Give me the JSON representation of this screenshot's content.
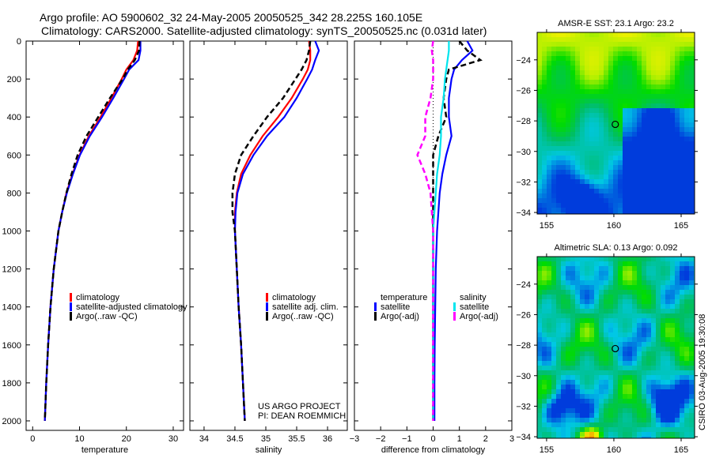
{
  "title_line1": "Argo profile: AO 5900602_32 24-May-2005 20050525_342 28.225S 160.105E",
  "title_line2": "Climatology: CARS2000. Satellite-adjusted climatology: synTS_20050525.nc (0.031d later)",
  "credit": "CSIRO 03-Aug-2005 19:30:08",
  "colors": {
    "climatology": "#ff0000",
    "satellite": "#0000ff",
    "argo": "#000000",
    "sal_satellite": "#00e5ee",
    "sal_argo": "#ff00ff"
  },
  "chart_data": [
    {
      "type": "line",
      "xlabel": "temperature",
      "ylabel": "",
      "xlim": [
        -1.4,
        32.2
      ],
      "ylim": [
        2050,
        0
      ],
      "xticks": [
        0,
        10,
        20,
        30
      ],
      "yticks": [
        0,
        200,
        400,
        600,
        800,
        1000,
        1200,
        1400,
        1600,
        1800,
        2000
      ],
      "depth": [
        0,
        50,
        100,
        150,
        200,
        300,
        400,
        500,
        600,
        700,
        800,
        900,
        1000,
        1200,
        1400,
        1600,
        1800,
        2000
      ],
      "legend": [
        "climatology",
        "satellite-adjusted climatology",
        "Argo(..raw -QC)"
      ],
      "series": [
        {
          "name": "climatology",
          "color": "#ff0000",
          "dash": false,
          "values": [
            22.5,
            22.3,
            21.5,
            20,
            19,
            16.8,
            14.5,
            12,
            10,
            8.5,
            7.2,
            6.3,
            5.5,
            4.5,
            3.8,
            3.3,
            2.9,
            2.6
          ]
        },
        {
          "name": "satellite-adjusted climatology",
          "color": "#0000ff",
          "dash": false,
          "values": [
            23,
            23,
            22.6,
            20.6,
            19.5,
            17.2,
            14.8,
            12.2,
            10.1,
            8.6,
            7.3,
            6.3,
            5.5,
            4.5,
            3.8,
            3.3,
            2.9,
            2.6
          ]
        },
        {
          "name": "Argo(..raw -QC)",
          "color": "#000000",
          "dash": true,
          "values": [
            22.8,
            22.7,
            21.8,
            20.3,
            19.2,
            16.5,
            14,
            11.5,
            9.6,
            8.3,
            7.2,
            6.3,
            5.5,
            4.5,
            3.8,
            3.3,
            2.9,
            2.6
          ]
        }
      ]
    },
    {
      "type": "line",
      "xlabel": "salinity",
      "ylabel": "",
      "xlim": [
        33.77,
        36.32
      ],
      "ylim": [
        2050,
        0
      ],
      "xticks": [
        34,
        34.5,
        35,
        35.5,
        36
      ],
      "yticks": [
        0,
        200,
        400,
        600,
        800,
        1000,
        1200,
        1400,
        1600,
        1800,
        2000
      ],
      "depth": [
        0,
        50,
        100,
        150,
        200,
        300,
        400,
        500,
        600,
        700,
        800,
        900,
        1000,
        1200,
        1400,
        1600,
        1800,
        2000
      ],
      "legend": [
        "climatology",
        "satellite adj. clim.",
        "Argo(..raw -QC)"
      ],
      "annotation": [
        "US ARGO PROJECT",
        "PI: DEAN ROEMMICH"
      ],
      "series": [
        {
          "name": "climatology",
          "color": "#ff0000",
          "dash": false,
          "values": [
            35.7,
            35.72,
            35.72,
            35.68,
            35.6,
            35.42,
            35.2,
            34.95,
            34.75,
            34.6,
            34.53,
            34.5,
            34.5,
            34.53,
            34.56,
            34.6,
            34.63,
            34.66
          ]
        },
        {
          "name": "satellite adj. clim.",
          "color": "#0000ff",
          "dash": false,
          "values": [
            35.8,
            35.86,
            35.8,
            35.75,
            35.67,
            35.5,
            35.3,
            35.02,
            34.8,
            34.63,
            34.54,
            34.51,
            34.5,
            34.53,
            34.56,
            34.6,
            34.63,
            34.66
          ]
        },
        {
          "name": "Argo(..raw -QC)",
          "color": "#000000",
          "dash": true,
          "values": [
            35.72,
            35.7,
            35.66,
            35.58,
            35.48,
            35.28,
            35.02,
            34.8,
            34.6,
            34.5,
            34.46,
            34.46,
            34.5,
            34.53,
            34.56,
            34.6,
            34.63,
            34.66
          ]
        }
      ]
    },
    {
      "type": "line",
      "xlabel": "difference from climatology",
      "ylabel": "",
      "xlim": [
        -3,
        3
      ],
      "ylim": [
        2050,
        0
      ],
      "xticks": [
        -3,
        -2,
        -1,
        0,
        1,
        2,
        3
      ],
      "yticks": [
        0,
        200,
        400,
        600,
        800,
        1000,
        1200,
        1400,
        1600,
        1800,
        2000
      ],
      "depth": [
        0,
        50,
        100,
        150,
        200,
        300,
        400,
        500,
        600,
        700,
        800,
        900,
        1000,
        1200,
        1400,
        1600,
        1800,
        2000
      ],
      "legend_temperature": [
        "temperature",
        "satellite",
        "Argo(-adj)"
      ],
      "legend_salinity": [
        "salinity",
        "satellite",
        "Argo(-adj)"
      ],
      "series": [
        {
          "name": "temperature satellite",
          "color": "#0000ff",
          "dash": false,
          "values": [
            1.3,
            1.5,
            1.1,
            0.8,
            0.7,
            0.6,
            0.6,
            0.7,
            0.5,
            0.35,
            0.25,
            0.2,
            0.15,
            0.1,
            0.08,
            0.06,
            0.05,
            0.05
          ]
        },
        {
          "name": "temperature Argo(-adj)",
          "color": "#000000",
          "dash": true,
          "values": [
            1.0,
            1.3,
            1.8,
            0.6,
            0.5,
            0.4,
            0.5,
            0.2,
            0.0,
            0.0,
            0.0,
            0.0,
            0.0,
            0.0,
            0.0,
            0.0,
            0.0,
            0.0
          ]
        },
        {
          "name": "salinity satellite",
          "color": "#00e5ee",
          "dash": false,
          "values": [
            0.6,
            0.6,
            0.55,
            0.5,
            0.45,
            0.4,
            0.3,
            0.3,
            0.25,
            0.15,
            0.1,
            0.05,
            0.0,
            0.0,
            0.0,
            0.0,
            0.0,
            0.0
          ]
        },
        {
          "name": "salinity Argo(-adj)",
          "color": "#ff00ff",
          "dash": true,
          "values": [
            0.0,
            -0.05,
            0.0,
            0.0,
            0.0,
            -0.1,
            -0.3,
            -0.3,
            -0.6,
            -0.3,
            -0.1,
            -0.05,
            0.0,
            0.0,
            0.0,
            0.0,
            0.0,
            0.0
          ]
        }
      ]
    },
    {
      "type": "heatmap",
      "title": "AMSR-E SST: 23.1 Argo: 23.2",
      "xlim": [
        154.3,
        166
      ],
      "ylim": [
        -34.1,
        -22.2
      ],
      "xticks": [
        155,
        160,
        165
      ],
      "yticks": [
        -24,
        -26,
        -28,
        -30,
        -32,
        -34
      ],
      "marker": [
        160.105,
        -28.225
      ]
    },
    {
      "type": "heatmap",
      "title": "Altimetric SLA: 0.13 Argo: 0.092",
      "xlim": [
        154.3,
        166
      ],
      "ylim": [
        -34.1,
        -22.2
      ],
      "xticks": [
        155,
        160,
        165
      ],
      "yticks": [
        -24,
        -26,
        -28,
        -30,
        -32,
        -34
      ],
      "marker": [
        160.105,
        -28.225
      ]
    }
  ]
}
